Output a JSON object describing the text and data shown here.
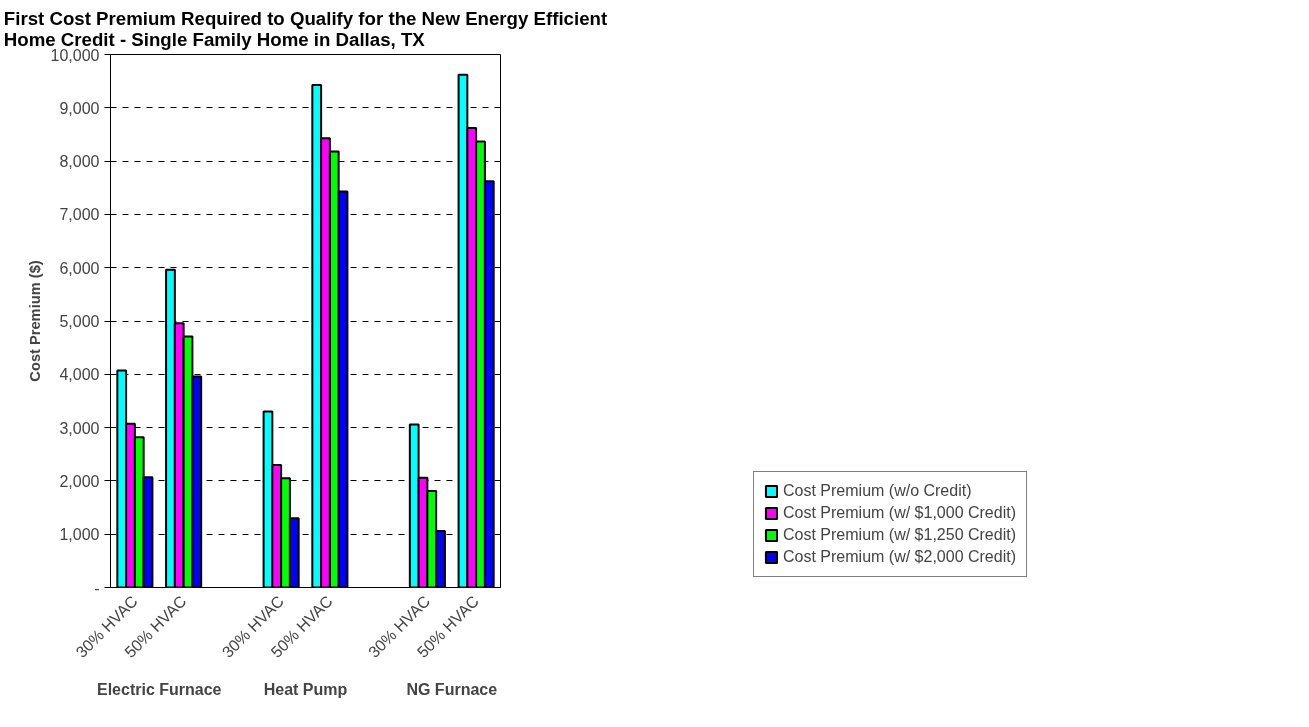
{
  "chart_data": {
    "type": "bar",
    "title": "First Cost Premium Required to Qualify for the New Energy Efficient Home Credit - Single Family Home in Dallas, TX",
    "ylabel": "Cost Premium ($)",
    "categories": [
      "30% HVAC",
      "50% HVAC",
      null,
      "30% HVAC",
      "50% HVAC",
      null,
      "30% HVAC",
      "50% HVAC"
    ],
    "annotations": [
      "Electric Furnace",
      "Heat Pump",
      "NG Furnace"
    ],
    "series": [
      {
        "name": "Cost Premium (w/o Credit)",
        "color": "#00ffff",
        "values": [
          4070,
          5960,
          null,
          3300,
          9430,
          null,
          3060,
          9620
        ]
      },
      {
        "name": "Cost Premium (w/ $1,000 Credit)",
        "color": "#ff00ff",
        "values": [
          3070,
          4960,
          null,
          2300,
          8430,
          null,
          2060,
          8620
        ]
      },
      {
        "name": "Cost Premium (w/ $1,250 Credit)",
        "color": "#00ff00",
        "values": [
          2820,
          4710,
          null,
          2050,
          8180,
          null,
          1810,
          8370
        ]
      },
      {
        "name": "Cost Premium (w/ $2,000 Credit)",
        "color": "#0000ff",
        "values": [
          2070,
          3960,
          null,
          1300,
          7430,
          null,
          1060,
          7620
        ]
      }
    ],
    "ylim": [
      0,
      10000
    ],
    "yticks": [
      {
        "value": 0,
        "label": "-"
      },
      {
        "value": 1000,
        "label": "1,000"
      },
      {
        "value": 2000,
        "label": "2,000"
      },
      {
        "value": 3000,
        "label": "3,000"
      },
      {
        "value": 4000,
        "label": "4,000"
      },
      {
        "value": 5000,
        "label": "5,000"
      },
      {
        "value": 6000,
        "label": "6,000"
      },
      {
        "value": 7000,
        "label": "7,000"
      },
      {
        "value": 8000,
        "label": "8,000"
      },
      {
        "value": 9000,
        "label": "9,000"
      },
      {
        "value": 10000,
        "label": "10,000"
      }
    ],
    "grid": "y",
    "legend": "bottom right"
  }
}
